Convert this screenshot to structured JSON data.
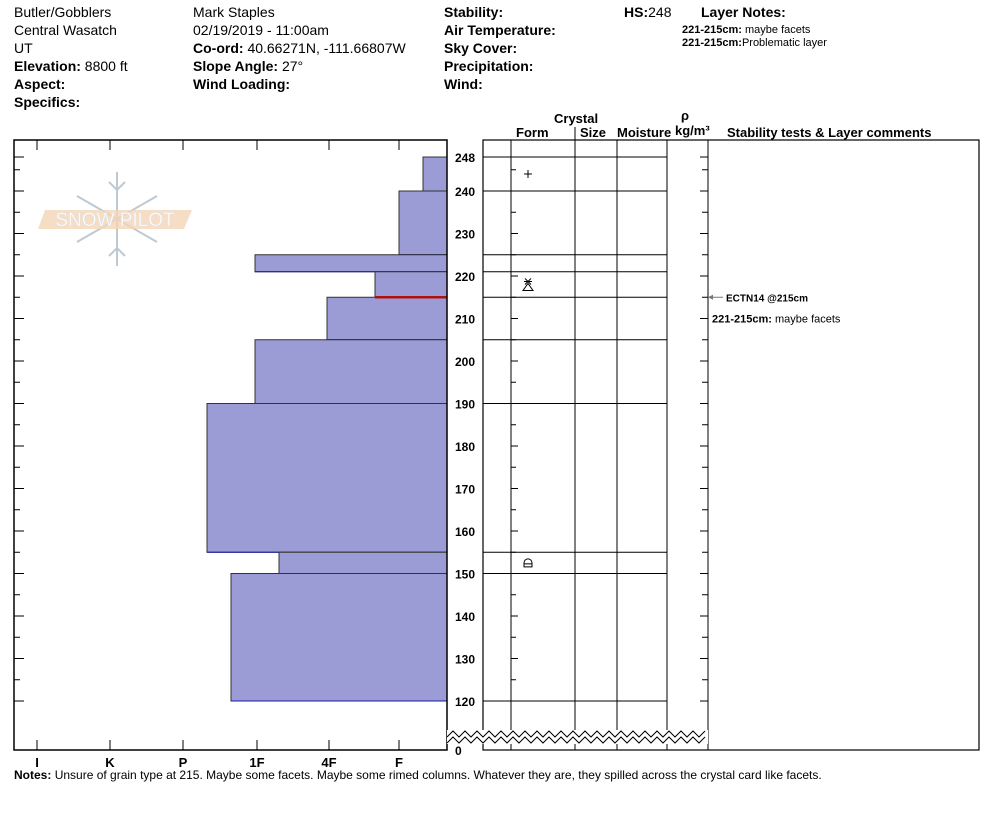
{
  "header": {
    "location": "Butler/Gobblers",
    "range": "Central Wasatch",
    "state": "UT",
    "elevation_label": "Elevation:",
    "elevation": "8800 ft",
    "aspect_label": "Aspect:",
    "specifics_label": "Specifics:",
    "observer": "Mark Staples",
    "datetime": "02/19/2019 - 11:00am",
    "coord_label": "Co-ord:",
    "coord": "40.66271N, -111.66807W",
    "slope_label": "Slope Angle:",
    "slope": "27°",
    "wind_loading_label": "Wind Loading:",
    "stability_label": "Stability:",
    "air_temp_label": "Air Temperature:",
    "sky_label": "Sky Cover:",
    "precip_label": "Precipitation:",
    "wind_label": "Wind:",
    "hs_label": "HS:",
    "hs": "248",
    "layer_notes_label": "Layer Notes:",
    "layer_notes": [
      {
        "range": "221-215cm:",
        "text": "maybe facets"
      },
      {
        "range": "221-215cm:",
        "text": "Problematic layer"
      }
    ]
  },
  "columns": {
    "crystal": "Crystal",
    "form": "Form",
    "size": "Size",
    "moisture": "Moisture",
    "rho": "ρ",
    "density_unit": "kg/m³",
    "stability": "Stability tests & Layer comments"
  },
  "logo_text": "SNOW PILOT",
  "chart_data": {
    "type": "bar",
    "orientation": "horizontal",
    "x_axis": {
      "categories": [
        "I",
        "K",
        "P",
        "1F",
        "4F",
        "F"
      ],
      "direction": "hardness increases to the left"
    },
    "y_axis": {
      "label": "",
      "ticks": [
        248,
        240,
        230,
        220,
        210,
        200,
        190,
        180,
        170,
        160,
        150,
        140,
        130,
        120,
        0
      ],
      "range": [
        0,
        248
      ],
      "axis_break": [
        0,
        120
      ]
    },
    "layers": [
      {
        "top": 248,
        "bottom": 240,
        "hardness": "F-",
        "form_icon": "precipitation-particles-icon"
      },
      {
        "top": 240,
        "bottom": 225,
        "hardness": "F"
      },
      {
        "top": 225,
        "bottom": 221,
        "hardness": "1F"
      },
      {
        "top": 221,
        "bottom": 215,
        "hardness": "F+",
        "form_icon": "mixed-forms-icon"
      },
      {
        "top": 215,
        "bottom": 205,
        "hardness": "4F"
      },
      {
        "top": 205,
        "bottom": 190,
        "hardness": "1F"
      },
      {
        "top": 190,
        "bottom": 155,
        "hardness": "P-"
      },
      {
        "top": 155,
        "bottom": 150,
        "hardness": "1F-",
        "form_icon": "faceted-rounded-icon"
      },
      {
        "top": 150,
        "bottom": 120,
        "hardness": "1F+"
      }
    ],
    "failure_layer_depth": 215,
    "stability_tests": [
      {
        "depth": 215,
        "label": "ECTN14 @215cm"
      }
    ],
    "layer_comments": [
      {
        "depth": 215,
        "range": "221-215cm:",
        "text": "maybe facets"
      }
    ],
    "colors": {
      "bar_fill": "#9b9bd6",
      "bar_edge": "#1a1aa0",
      "failure_line": "#b01010"
    }
  },
  "notes_label": "Notes:",
  "notes": "Unsure of grain type at 215. Maybe some facets. Maybe some rimed columns. Whatever they are, they spilled across the crystal card like facets."
}
